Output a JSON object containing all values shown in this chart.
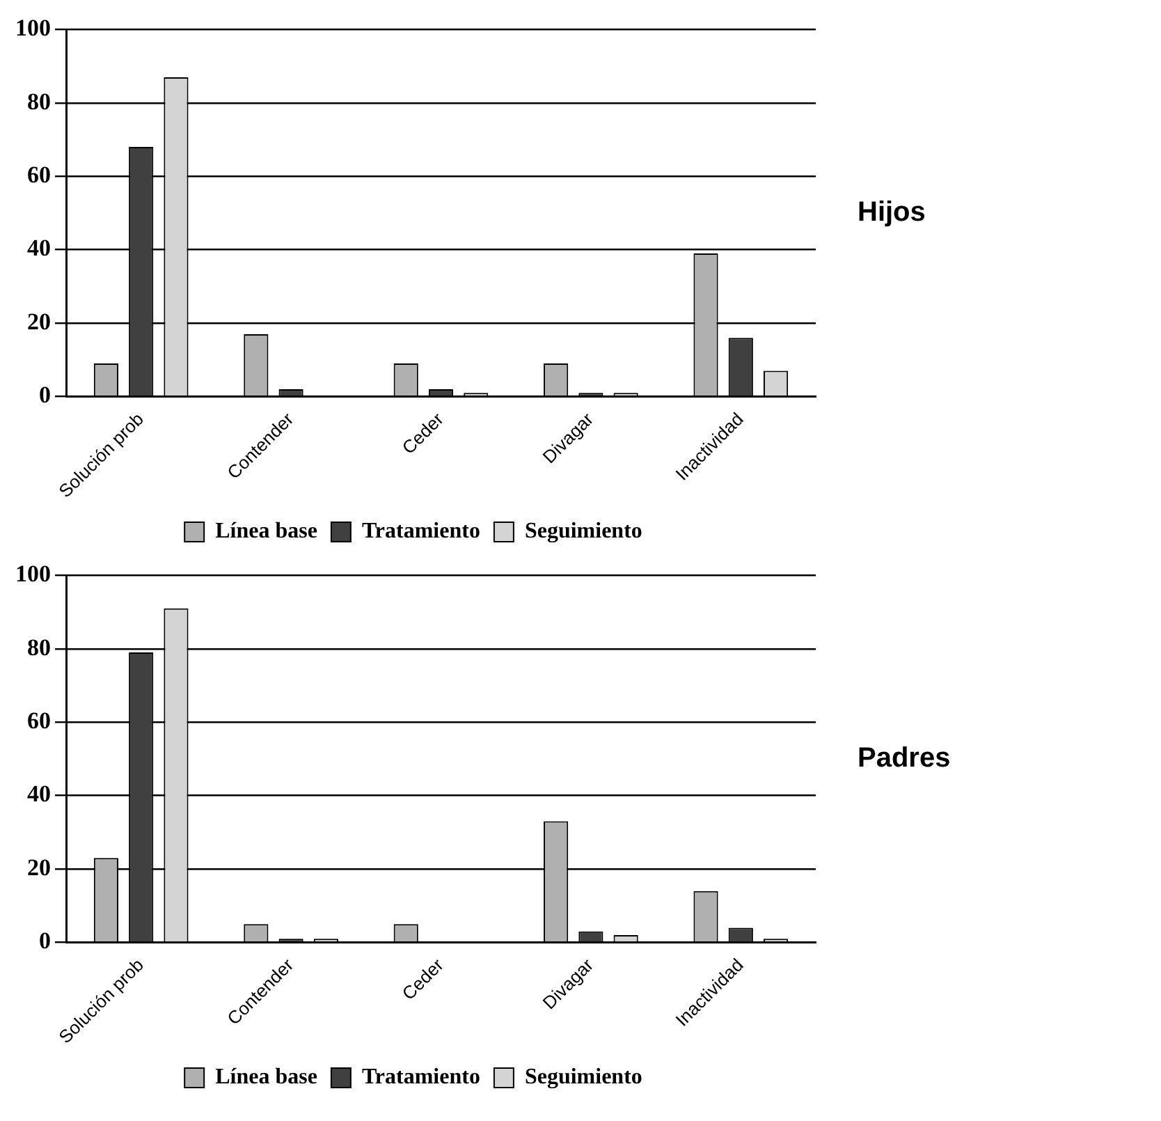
{
  "chart_data": [
    {
      "type": "bar",
      "annotations": [
        "Hijos"
      ],
      "categories": [
        "Solución prob",
        "Contender",
        "Ceder",
        "Divagar",
        "Inactividad"
      ],
      "series": [
        {
          "name": "Línea base",
          "color": "#b0b0b0",
          "values": [
            9,
            17,
            9,
            9,
            39
          ]
        },
        {
          "name": "Tratamiento",
          "color": "#404040",
          "values": [
            68,
            2,
            2,
            1,
            16
          ]
        },
        {
          "name": "Seguimiento",
          "color": "#d4d4d4",
          "values": [
            87,
            0,
            1,
            1,
            7
          ]
        }
      ],
      "ylim": [
        0,
        100
      ],
      "yticks": [
        0,
        20,
        40,
        60,
        80,
        100
      ],
      "grid": "y",
      "legend": "bottom"
    },
    {
      "type": "bar",
      "annotations": [
        "Padres"
      ],
      "categories": [
        "Solución prob",
        "Contender",
        "Ceder",
        "Divagar",
        "Inactividad"
      ],
      "series": [
        {
          "name": "Línea base",
          "color": "#b0b0b0",
          "values": [
            23,
            5,
            5,
            33,
            14
          ]
        },
        {
          "name": "Tratamiento",
          "color": "#404040",
          "values": [
            79,
            1,
            0,
            3,
            4
          ]
        },
        {
          "name": "Seguimiento",
          "color": "#d4d4d4",
          "values": [
            91,
            1,
            0,
            2,
            1
          ]
        }
      ],
      "ylim": [
        0,
        100
      ],
      "yticks": [
        0,
        20,
        40,
        60,
        80,
        100
      ],
      "grid": "y",
      "legend": "bottom"
    }
  ]
}
